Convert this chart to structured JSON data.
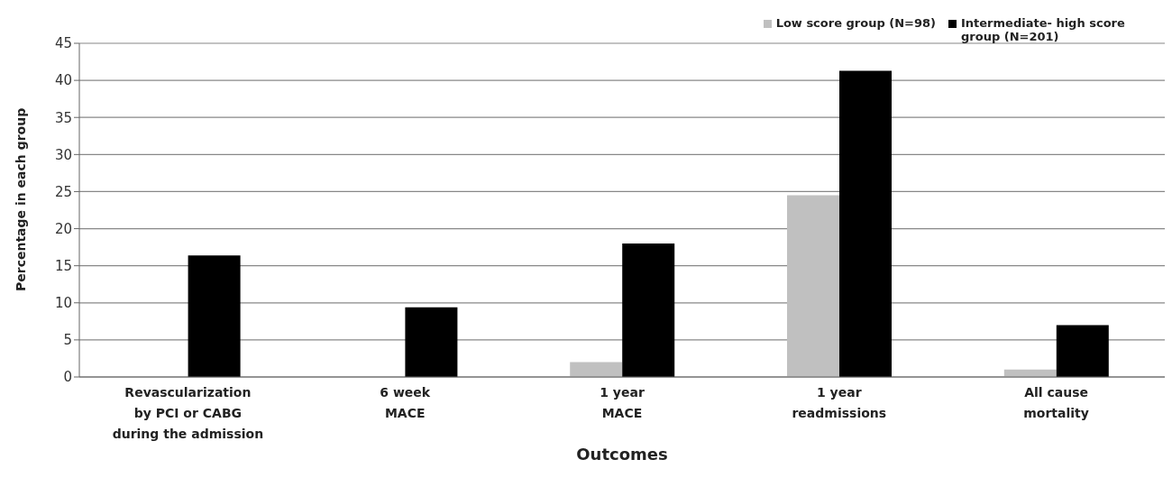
{
  "chart_data": {
    "type": "bar",
    "xlabel": "Outcomes",
    "ylabel": "Percentage in each group",
    "categories": [
      "Revascularization\nby PCI or CABG\nduring the admission",
      "6 week\nMACE",
      "1 year\nMACE",
      "1 year\nreadmissions",
      "All cause\nmortality"
    ],
    "series": [
      {
        "name": "Low score group (N=98)",
        "color": "#c0c0c0",
        "values": [
          0,
          0,
          2.0,
          24.5,
          1.0
        ]
      },
      {
        "name": "Intermediate- high score group  (N=201)",
        "color": "#000000",
        "values": [
          16.4,
          9.4,
          18.0,
          41.3,
          7.0
        ]
      }
    ],
    "ylim": [
      0,
      45
    ],
    "yticks": [
      0,
      5,
      10,
      15,
      20,
      25,
      30,
      35,
      40,
      45
    ],
    "grid": "y",
    "legend": "top right"
  }
}
